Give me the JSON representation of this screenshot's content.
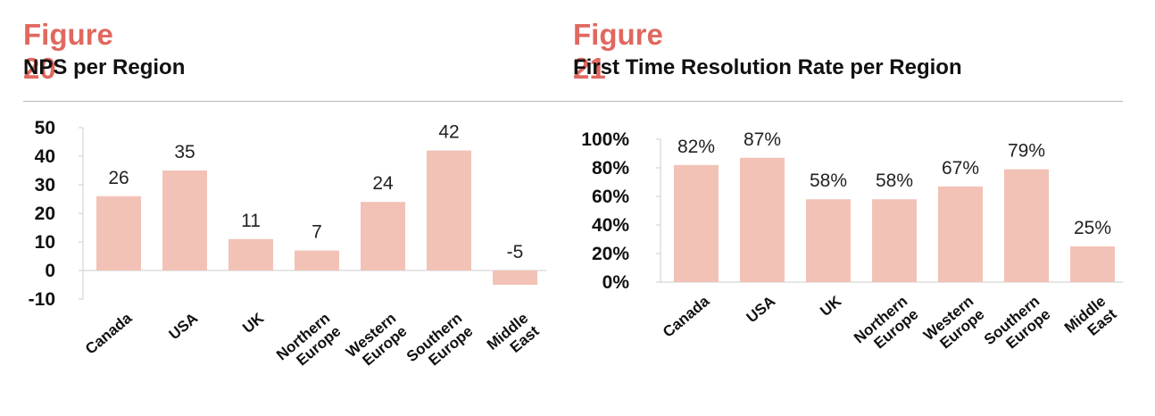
{
  "figures": [
    {
      "label": "Figure 20",
      "title": "NPS per Region"
    },
    {
      "label": "Figure 21",
      "title": "First Time Resolution Rate per Region"
    }
  ],
  "chart_data": [
    {
      "type": "bar",
      "title": "NPS per Region",
      "xlabel": "",
      "ylabel": "",
      "categories": [
        [
          "Canada"
        ],
        [
          "USA"
        ],
        [
          "UK"
        ],
        [
          "Northern",
          "Europe"
        ],
        [
          "Western",
          "Europe"
        ],
        [
          "Southern",
          "Europe"
        ],
        [
          "Middle",
          "East"
        ]
      ],
      "values": [
        26,
        35,
        11,
        7,
        24,
        42,
        -5
      ],
      "data_labels": [
        "26",
        "35",
        "11",
        "7",
        "24",
        "42",
        "-5"
      ],
      "ylim": [
        -10,
        50
      ],
      "yticks": [
        50,
        40,
        30,
        20,
        10,
        0,
        -10
      ],
      "ytick_labels": [
        "50",
        "40",
        "30",
        "20",
        "10",
        "0",
        "-10"
      ],
      "bar_color": "#f2c2b7",
      "grid": false,
      "legend": "none"
    },
    {
      "type": "bar",
      "title": "First Time Resolution Rate per Region",
      "xlabel": "",
      "ylabel": "",
      "categories": [
        [
          "Canada"
        ],
        [
          "USA"
        ],
        [
          "UK"
        ],
        [
          "Northern",
          "Europe"
        ],
        [
          "Western",
          "Europe"
        ],
        [
          "Southern",
          "Europe"
        ],
        [
          "Middle",
          "East"
        ]
      ],
      "values": [
        82,
        87,
        58,
        58,
        67,
        79,
        25
      ],
      "data_labels": [
        "82%",
        "87%",
        "58%",
        "58%",
        "67%",
        "79%",
        "25%"
      ],
      "ylim": [
        0,
        100
      ],
      "yticks": [
        100,
        80,
        60,
        40,
        20,
        0
      ],
      "ytick_labels": [
        "100%",
        "80%",
        "60%",
        "40%",
        "20%",
        "0%"
      ],
      "bar_color": "#f2c2b7",
      "grid": false,
      "legend": "none"
    }
  ]
}
